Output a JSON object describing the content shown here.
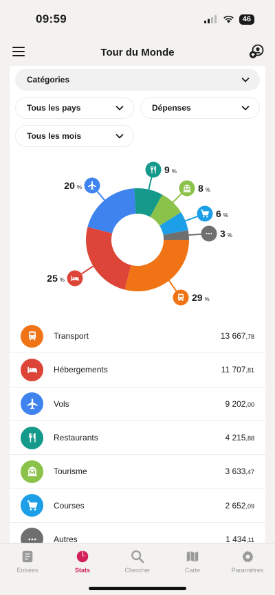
{
  "status": {
    "time": "09:59",
    "battery": "46"
  },
  "header": {
    "title": "Tour du Monde"
  },
  "filters": {
    "categories": "Catégories",
    "countries": "Tous les pays",
    "type": "Dépenses",
    "months": "Tous les mois"
  },
  "colors": {
    "transport": "#f07416",
    "hebergements": "#dc4538",
    "vols": "#3f84ee",
    "restaurants": "#14998b",
    "tourisme": "#8bc24a",
    "courses": "#1d9fe8",
    "autres": "#6f6f6f",
    "accent": "#d21f5a"
  },
  "chart_data": {
    "type": "pie",
    "style": "donut",
    "slices": [
      {
        "name": "Transport",
        "value": 29,
        "label": "29",
        "color": "#f07416",
        "icon": "bus-icon"
      },
      {
        "name": "Hébergements",
        "value": 25,
        "label": "25",
        "color": "#dc4538",
        "icon": "bed-icon"
      },
      {
        "name": "Vols",
        "value": 20,
        "label": "20",
        "color": "#3f84ee",
        "icon": "plane-icon"
      },
      {
        "name": "Restaurants",
        "value": 9,
        "label": "9",
        "color": "#14998b",
        "icon": "fork-knife-icon"
      },
      {
        "name": "Tourisme",
        "value": 8,
        "label": "8",
        "color": "#8bc24a",
        "icon": "museum-icon"
      },
      {
        "name": "Courses",
        "value": 6,
        "label": "6",
        "color": "#1d9fe8",
        "icon": "cart-icon"
      },
      {
        "name": "Autres",
        "value": 3,
        "label": "3",
        "color": "#6f6f6f",
        "icon": "more-icon"
      }
    ],
    "unit": "%"
  },
  "list": [
    {
      "label": "Transport",
      "value_int": "13 667",
      "value_dec": ",78",
      "icon": "bus-icon",
      "color": "#f07416"
    },
    {
      "label": "Hébergements",
      "value_int": "11 707",
      "value_dec": ",81",
      "icon": "bed-icon",
      "color": "#dc4538"
    },
    {
      "label": "Vols",
      "value_int": "9 202",
      "value_dec": ",00",
      "icon": "plane-icon",
      "color": "#3f84ee"
    },
    {
      "label": "Restaurants",
      "value_int": "4 215",
      "value_dec": ",88",
      "icon": "fork-knife-icon",
      "color": "#14998b"
    },
    {
      "label": "Tourisme",
      "value_int": "3 633",
      "value_dec": ",47",
      "icon": "museum-icon",
      "color": "#8bc24a"
    },
    {
      "label": "Courses",
      "value_int": "2 652",
      "value_dec": ",09",
      "icon": "cart-icon",
      "color": "#1d9fe8"
    },
    {
      "label": "Autres",
      "value_int": "1 434",
      "value_dec": ",11",
      "icon": "more-icon",
      "color": "#6f6f6f"
    }
  ],
  "tabs": [
    {
      "label": "Entrées",
      "icon": "entries-icon",
      "active": false
    },
    {
      "label": "Stats",
      "icon": "pie-chart-icon",
      "active": true
    },
    {
      "label": "Chercher",
      "icon": "search-icon",
      "active": false
    },
    {
      "label": "Carte",
      "icon": "map-icon",
      "active": false
    },
    {
      "label": "Paramètres",
      "icon": "gear-icon",
      "active": false
    }
  ]
}
